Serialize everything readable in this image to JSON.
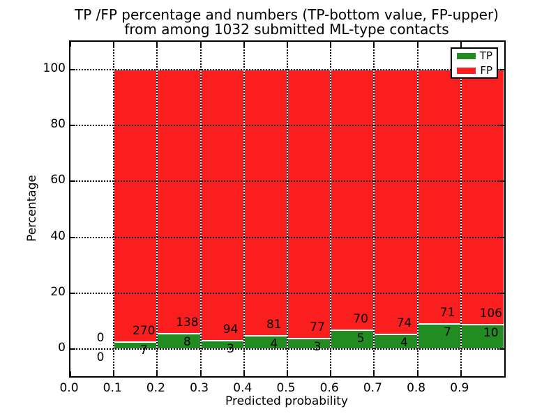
{
  "title": {
    "line1": "TP /FP percentage and numbers (TP-bottom value, FP-upper)",
    "line2": "from among 1032 submitted ML-type contacts"
  },
  "axes": {
    "xlabel": "Predicted probability",
    "ylabel": "Percentage",
    "x_tick_labels": [
      "0.0",
      "0.1",
      "0.2",
      "0.3",
      "0.4",
      "0.5",
      "0.6",
      "0.7",
      "0.8",
      "0.9"
    ],
    "y_tick_labels": [
      "0",
      "20",
      "40",
      "60",
      "80",
      "100"
    ],
    "y_tick_values": [
      0,
      20,
      40,
      60,
      80,
      100
    ]
  },
  "legend": {
    "position": "upper right",
    "entries": [
      {
        "label": "TP",
        "color": "#228c22"
      },
      {
        "label": "FP",
        "color": "#fa1e1e"
      }
    ]
  },
  "colors": {
    "tp_green": "#228c22",
    "fp_red": "#fa1e1e",
    "grid": "#000000",
    "background": "#ffffff",
    "bar_edge": "#ffffff"
  },
  "chart_data": {
    "type": "bar",
    "stacked": true,
    "normalized_to": 100,
    "title": "TP /FP percentage and numbers (TP-bottom value, FP-upper) from among 1032 submitted ML-type contacts",
    "xlabel": "Predicted probability",
    "ylabel": "Percentage",
    "xlim": [
      0.0,
      1.0
    ],
    "ylim": [
      -10,
      110
    ],
    "grid": "dotted",
    "legend_position": "upper right",
    "bin_width": 0.1,
    "total_contacts": 1032,
    "bins": [
      {
        "x_start": 0.0,
        "x_end": 0.1,
        "tp_count": 0,
        "fp_count": 0,
        "tp_pct": 0,
        "fp_pct": 0
      },
      {
        "x_start": 0.1,
        "x_end": 0.2,
        "tp_count": 7,
        "fp_count": 270,
        "tp_pct": 2.53,
        "fp_pct": 97.47
      },
      {
        "x_start": 0.2,
        "x_end": 0.3,
        "tp_count": 8,
        "fp_count": 138,
        "tp_pct": 5.48,
        "fp_pct": 94.52
      },
      {
        "x_start": 0.3,
        "x_end": 0.4,
        "tp_count": 3,
        "fp_count": 94,
        "tp_pct": 3.09,
        "fp_pct": 96.91
      },
      {
        "x_start": 0.4,
        "x_end": 0.5,
        "tp_count": 4,
        "fp_count": 81,
        "tp_pct": 4.71,
        "fp_pct": 95.29
      },
      {
        "x_start": 0.5,
        "x_end": 0.6,
        "tp_count": 3,
        "fp_count": 77,
        "tp_pct": 3.75,
        "fp_pct": 96.25
      },
      {
        "x_start": 0.6,
        "x_end": 0.7,
        "tp_count": 5,
        "fp_count": 70,
        "tp_pct": 6.67,
        "fp_pct": 93.33
      },
      {
        "x_start": 0.7,
        "x_end": 0.8,
        "tp_count": 4,
        "fp_count": 74,
        "tp_pct": 5.13,
        "fp_pct": 94.87
      },
      {
        "x_start": 0.8,
        "x_end": 0.9,
        "tp_count": 7,
        "fp_count": 71,
        "tp_pct": 8.97,
        "fp_pct": 91.03
      },
      {
        "x_start": 0.9,
        "x_end": 1.0,
        "tp_count": 10,
        "fp_count": 106,
        "tp_pct": 8.62,
        "fp_pct": 91.38
      }
    ],
    "series": [
      {
        "name": "TP",
        "color": "#228c22",
        "values_pct": [
          0,
          2.53,
          5.48,
          3.09,
          4.71,
          3.75,
          6.67,
          5.13,
          8.97,
          8.62
        ]
      },
      {
        "name": "FP",
        "color": "#fa1e1e",
        "values_pct": [
          0,
          97.47,
          94.52,
          96.91,
          95.29,
          96.25,
          93.33,
          94.87,
          91.03,
          91.38
        ]
      }
    ]
  }
}
